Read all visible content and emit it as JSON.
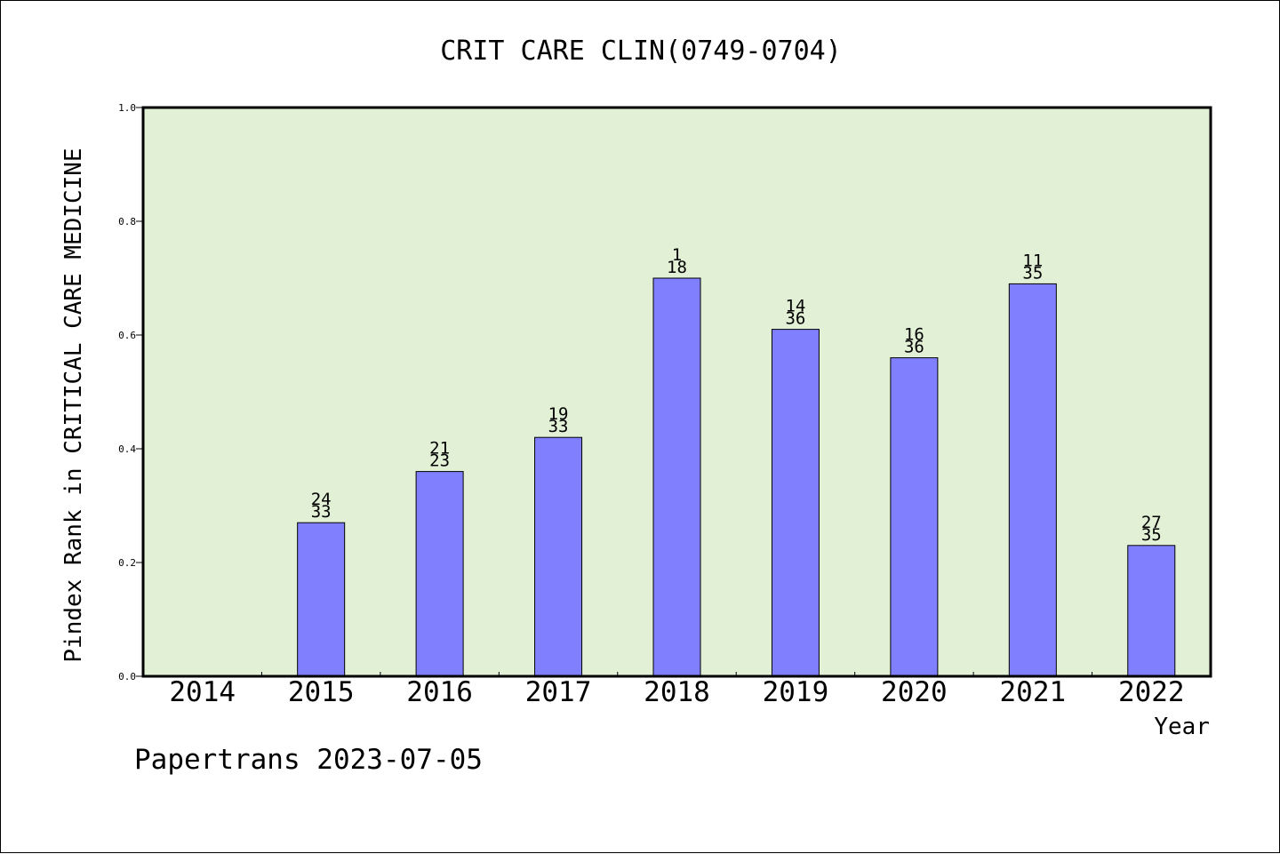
{
  "chart_data": {
    "type": "bar",
    "title": "CRIT CARE CLIN(0749-0704)",
    "xlabel": "Year",
    "ylabel": "Pindex Rank in CRITICAL CARE MEDICINE",
    "categories": [
      "2014",
      "2015",
      "2016",
      "2017",
      "2018",
      "2019",
      "2020",
      "2021",
      "2022"
    ],
    "values": [
      null,
      0.27,
      0.36,
      0.42,
      0.7,
      0.61,
      0.56,
      0.69,
      0.23
    ],
    "rank_labels": [
      "",
      "24",
      "21",
      "19",
      "1",
      "14",
      "16",
      "11",
      "27"
    ],
    "total_labels": [
      "",
      "33",
      "23",
      "33",
      "18",
      "36",
      "36",
      "35",
      "35"
    ],
    "ylim": [
      0,
      1.0
    ],
    "yticks": [
      "0.0",
      "0.2",
      "0.4",
      "0.6",
      "0.8",
      "1.0"
    ],
    "grid": false,
    "colors": {
      "plot_background": "#e2f0d6",
      "bar": "#8080ff",
      "bar_edge": "#000000"
    }
  },
  "footer": {
    "credit": "Papertrans 2023-07-05"
  }
}
